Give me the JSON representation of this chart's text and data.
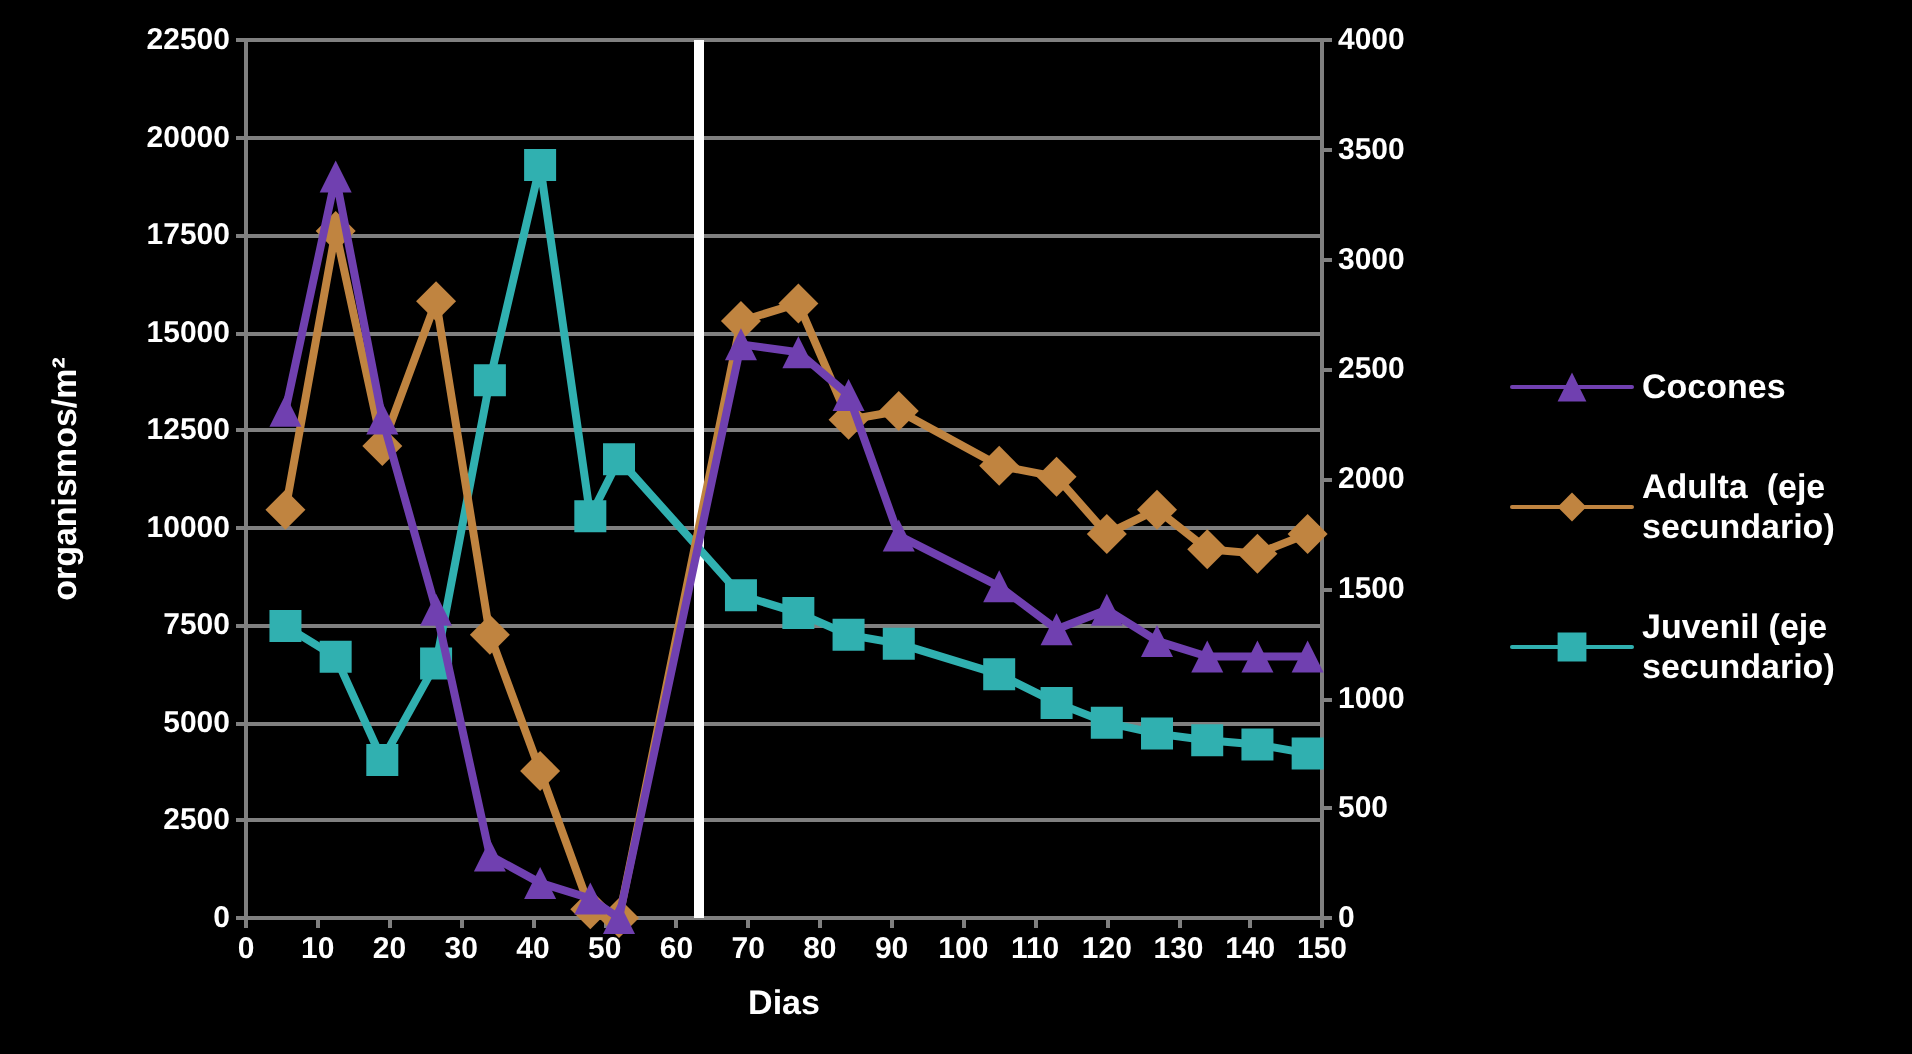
{
  "chart_data": {
    "type": "line",
    "xlabel": "Dias",
    "ylabel": "organismos/m²",
    "x": [
      5.5,
      12.5,
      19,
      26.5,
      34,
      41,
      48,
      52,
      69,
      77,
      84,
      91,
      105,
      113,
      120,
      127,
      134,
      141,
      148
    ],
    "series": [
      {
        "name": "Cocones",
        "color": "#7040b0",
        "marker": "triangle",
        "values": [
          13000,
          19000,
          12800,
          7900,
          1600,
          900,
          500,
          0,
          14700,
          14500,
          13400,
          9800,
          8500,
          7400,
          7900,
          7100,
          6700,
          6700,
          6700
        ]
      },
      {
        "name": "Adulta  (eje secundario)",
        "color": "#c08440",
        "marker": "diamond",
        "axis": "y2",
        "values": [
          1860,
          3130,
          2150,
          2810,
          1290,
          670,
          40,
          0,
          2720,
          2800,
          2270,
          2310,
          2060,
          2010,
          1750,
          1860,
          1680,
          1660,
          1750
        ]
      },
      {
        "name": "Juvenil (eje secundario)",
        "color": "#30b0b0",
        "marker": "square",
        "axis": "y2",
        "values": [
          1330,
          1190,
          720,
          1160,
          2450,
          3430,
          1830,
          2090,
          1470,
          1390,
          1290,
          1250,
          1110,
          980,
          890,
          840,
          810,
          790,
          750
        ]
      }
    ],
    "xlim": [
      0,
      150
    ],
    "xticks": [
      0,
      10,
      20,
      30,
      40,
      50,
      60,
      70,
      80,
      90,
      100,
      110,
      120,
      130,
      140,
      150
    ],
    "ylim": [
      0,
      22500
    ],
    "yticks": [
      0,
      2500,
      5000,
      7500,
      10000,
      12500,
      15000,
      17500,
      20000,
      22500
    ],
    "y2lim": [
      0,
      4000
    ],
    "y2ticks": [
      0,
      500,
      1000,
      1500,
      2000,
      2500,
      3000,
      3500,
      4000
    ],
    "ref_lines": [
      {
        "axis": "x",
        "value": 63,
        "color": "#ffffff"
      }
    ],
    "grid": "y",
    "legend": "right",
    "line_style": "solid"
  }
}
